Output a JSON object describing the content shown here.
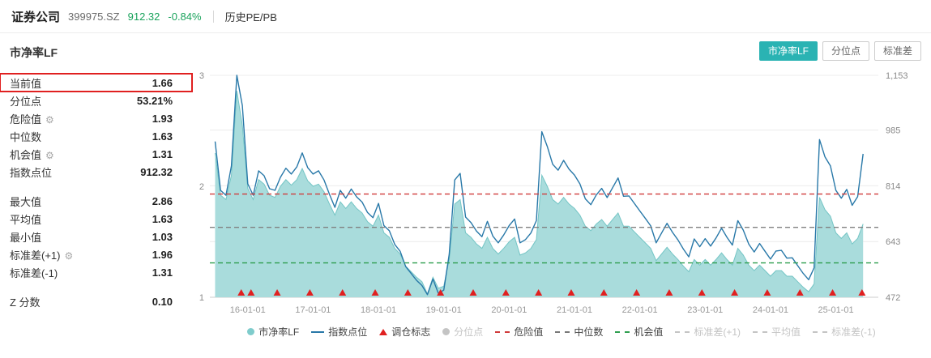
{
  "header": {
    "title": "证券公司",
    "code": "399975.SZ",
    "price": "912.32",
    "change": "-0.84%",
    "nav": "历史PE/PB"
  },
  "panel": {
    "title": "市净率LF"
  },
  "tabs": [
    {
      "label": "市净率LF",
      "active": true
    },
    {
      "label": "分位点",
      "active": false
    },
    {
      "label": "标准差",
      "active": false
    }
  ],
  "stats": {
    "rows": [
      {
        "label": "当前值",
        "value": "1.66",
        "highlight": true
      },
      {
        "label": "分位点",
        "value": "53.21%"
      },
      {
        "label": "危险值",
        "value": "1.93",
        "gear": true
      },
      {
        "label": "中位数",
        "value": "1.63"
      },
      {
        "label": "机会值",
        "value": "1.31",
        "gear": true
      },
      {
        "label": "指数点位",
        "value": "912.32"
      },
      {
        "label": "最大值",
        "value": "2.86",
        "gap": true
      },
      {
        "label": "平均值",
        "value": "1.63"
      },
      {
        "label": "最小值",
        "value": "1.03"
      },
      {
        "label": "标准差(+1)",
        "value": "1.96",
        "gear": true
      },
      {
        "label": "标准差(-1)",
        "value": "1.31"
      },
      {
        "label": "Z 分数",
        "value": "0.10",
        "gap": true
      }
    ]
  },
  "legend": [
    {
      "label": "市净率LF",
      "marker": "dot",
      "color": "#7fcccc",
      "active": true
    },
    {
      "label": "指数点位",
      "marker": "line",
      "color": "#2878a8",
      "active": true
    },
    {
      "label": "调仓标志",
      "marker": "triangle",
      "color": "#e02020",
      "active": true
    },
    {
      "label": "分位点",
      "marker": "dot",
      "color": "#c4c4c4",
      "active": false
    },
    {
      "label": "危险值",
      "marker": "dash",
      "color": "#d03a3a",
      "active": true
    },
    {
      "label": "中位数",
      "marker": "dash",
      "color": "#777777",
      "active": true
    },
    {
      "label": "机会值",
      "marker": "dash",
      "color": "#2f9e4f",
      "active": true
    },
    {
      "label": "标准差(+1)",
      "marker": "dash",
      "color": "#c4c4c4",
      "active": false
    },
    {
      "label": "平均值",
      "marker": "dash",
      "color": "#c4c4c4",
      "active": false
    },
    {
      "label": "标准差(-1)",
      "marker": "dash",
      "color": "#c4c4c4",
      "active": false
    }
  ],
  "colors": {
    "accent": "#2ab3b3",
    "up_down_green": "#1aa35c",
    "highlight_box": "#e02020"
  },
  "chart_data": {
    "type": "area",
    "title": "市净率LF",
    "x_start": 2015.5,
    "x_step": 0.0833333,
    "x_range": [
      2015.42,
      2025.65
    ],
    "x_axis": {
      "tick_years": [
        2016,
        2017,
        2018,
        2019,
        2020,
        2021,
        2022,
        2023,
        2024,
        2025
      ],
      "tick_labels": [
        "16-01-01",
        "17-01-01",
        "18-01-01",
        "19-01-01",
        "20-01-01",
        "21-01-01",
        "22-01-01",
        "23-01-01",
        "24-01-01",
        "25-01-01"
      ]
    },
    "left_axis": {
      "range": [
        1,
        3
      ],
      "ticks": [
        1,
        2,
        3
      ]
    },
    "right_axis": {
      "range": [
        472,
        1153
      ],
      "ticks": [
        472,
        643,
        814,
        985,
        1153
      ],
      "tick_labels": [
        "472",
        "643",
        "814",
        "985",
        "1,153"
      ]
    },
    "series": [
      {
        "name": "市净率LF",
        "type": "area",
        "axis": "left",
        "color": "#74c5c5",
        "fill": "#a9dcdc",
        "values": [
          2.3,
          1.92,
          1.88,
          2.1,
          2.86,
          2.55,
          1.98,
          1.88,
          2.06,
          2.02,
          1.92,
          1.9,
          2.0,
          2.06,
          2.01,
          2.06,
          2.16,
          2.05,
          2.0,
          2.02,
          1.95,
          1.84,
          1.74,
          1.86,
          1.8,
          1.86,
          1.8,
          1.76,
          1.68,
          1.64,
          1.74,
          1.58,
          1.54,
          1.44,
          1.39,
          1.28,
          1.23,
          1.18,
          1.14,
          1.03,
          1.18,
          1.08,
          1.1,
          1.34,
          1.84,
          1.88,
          1.58,
          1.54,
          1.48,
          1.44,
          1.54,
          1.44,
          1.39,
          1.44,
          1.5,
          1.54,
          1.38,
          1.4,
          1.44,
          1.52,
          2.1,
          2.0,
          1.88,
          1.84,
          1.9,
          1.84,
          1.8,
          1.74,
          1.64,
          1.6,
          1.66,
          1.7,
          1.64,
          1.7,
          1.76,
          1.64,
          1.64,
          1.59,
          1.54,
          1.49,
          1.44,
          1.33,
          1.39,
          1.45,
          1.39,
          1.34,
          1.28,
          1.23,
          1.34,
          1.29,
          1.34,
          1.29,
          1.34,
          1.4,
          1.34,
          1.29,
          1.44,
          1.38,
          1.29,
          1.24,
          1.29,
          1.24,
          1.19,
          1.24,
          1.24,
          1.19,
          1.19,
          1.14,
          1.09,
          1.05,
          1.12,
          1.9,
          1.79,
          1.73,
          1.58,
          1.53,
          1.58,
          1.48,
          1.53,
          1.66
        ]
      },
      {
        "name": "指数点位",
        "type": "line",
        "axis": "right",
        "color": "#2878a8",
        "values": [
          950,
          800,
          785,
          875,
          1153,
          1060,
          820,
          785,
          860,
          845,
          805,
          800,
          840,
          868,
          850,
          872,
          915,
          870,
          850,
          860,
          832,
          788,
          748,
          800,
          776,
          804,
          780,
          764,
          732,
          716,
          760,
          692,
          676,
          634,
          613,
          566,
          545,
          524,
          508,
          480,
          528,
          484,
          494,
          604,
          832,
          852,
          718,
          701,
          675,
          658,
          705,
          660,
          639,
          663,
          692,
          712,
          639,
          649,
          669,
          707,
          980,
          935,
          880,
          862,
          892,
          865,
          847,
          820,
          774,
          756,
          786,
          806,
          778,
          808,
          838,
          782,
          783,
          760,
          737,
          714,
          691,
          639,
          669,
          699,
          671,
          648,
          620,
          596,
          651,
          627,
          652,
          629,
          654,
          684,
          656,
          632,
          707,
          678,
          635,
          611,
          637,
          613,
          589,
          614,
          616,
          592,
          593,
          569,
          545,
          526,
          562,
          956,
          903,
          875,
          800,
          776,
          803,
          754,
          781,
          912
        ]
      }
    ],
    "rebalance_markers": {
      "name": "调仓标志",
      "color": "#e02020",
      "x": [
        2015.9,
        2016.05,
        2016.45,
        2016.95,
        2017.45,
        2017.95,
        2018.45,
        2018.95,
        2019.45,
        2019.95,
        2020.45,
        2020.95,
        2021.45,
        2021.95,
        2022.45,
        2022.95,
        2023.45,
        2023.95,
        2024.45,
        2024.95,
        2025.4
      ]
    },
    "ref_lines": [
      {
        "name": "危险值",
        "value": 1.93,
        "color": "#d03a3a",
        "style": "dashed"
      },
      {
        "name": "中位数",
        "value": 1.63,
        "color": "#808080",
        "style": "dashed"
      },
      {
        "name": "机会值",
        "value": 1.31,
        "color": "#2f9e4f",
        "style": "dashed"
      }
    ]
  }
}
